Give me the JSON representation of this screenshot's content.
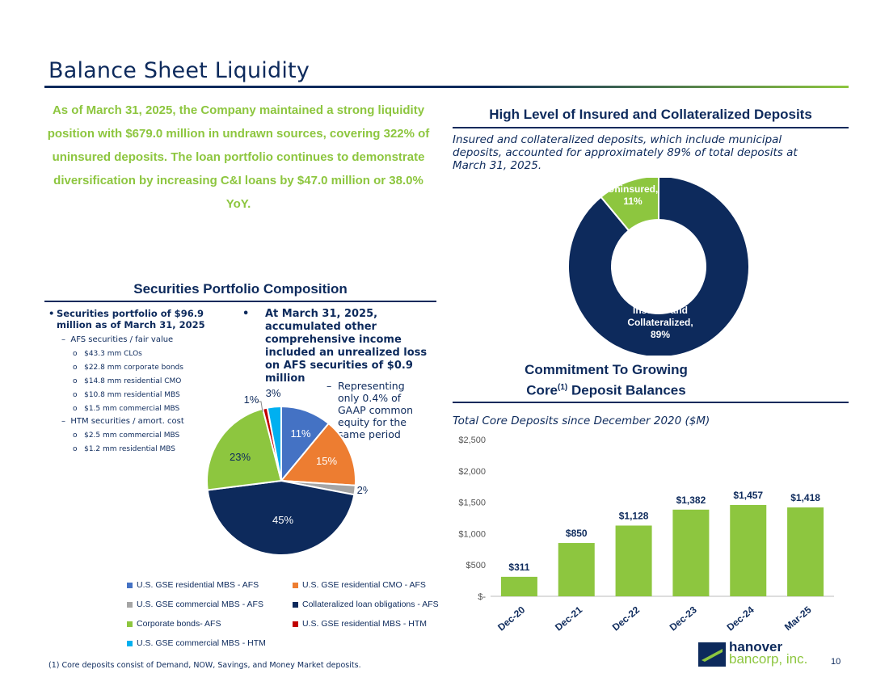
{
  "page": {
    "title": "Balance Sheet Liquidity",
    "page_number": "10"
  },
  "intro": "As of March 31, 2025, the Company maintained a strong liquidity position with $679.0 million in undrawn sources, covering 322% of uninsured deposits. The loan portfolio continues to demonstrate diversification by increasing C&I loans by $47.0 million or 38.0% YoY.",
  "portfolio": {
    "title": "Securities Portfolio Composition",
    "bullet1": "Securities portfolio of $96.9 million as of March 31, 2025",
    "afs_label": "AFS securities / fair value",
    "afs_items": [
      "$43.3 mm CLOs",
      "$22.8 mm corporate bonds",
      "$14.8 mm residential CMO",
      "$10.8 mm residential MBS",
      "$1.5 mm commercial MBS"
    ],
    "htm_label": "HTM securities / amort. cost",
    "htm_items": [
      "$2.5 mm commercial MBS",
      "$1.2 mm residential MBS"
    ],
    "bullet2": "At March 31, 2025, accumulated other comprehensive income included an unrealized loss on AFS securities of $0.9 million",
    "bullet2_sub": "Representing only 0.4% of GAAP common equity for the same period"
  },
  "deposits": {
    "title": "High Level of Insured and Collateralized Deposits",
    "description": "Insured and collateralized deposits, which include municipal deposits, accounted for approximately 89% of total deposits at March 31, 2025."
  },
  "core": {
    "title_line1": "Commitment To Growing",
    "title_line2a": "Core",
    "title_sup": "(1)",
    "title_line2b": " Deposit Balances",
    "subtitle": "Total Core Deposits since December 2020 ($M)"
  },
  "footnote": "(1) Core deposits consist of Demand, NOW, Savings, and Money Market deposits.",
  "logo": {
    "line1": "hanover",
    "line2": "bancorp, inc."
  },
  "colors": {
    "navy": "#0d2a5c",
    "green": "#8dc63f",
    "blue": "#4472c4",
    "orange": "#ed7d31",
    "gray": "#a5a5a5",
    "red": "#c00000",
    "cyan": "#00b0f0"
  },
  "chart_data": [
    {
      "type": "pie",
      "labels": [
        "U.S. GSE residential MBS - AFS",
        "U.S. GSE residential CMO - AFS",
        "U.S. GSE commercial MBS -  AFS",
        "Collateralized loan obligations - AFS",
        "Corporate bonds- AFS",
        "U.S. GSE residential MBS - HTM",
        "U.S. GSE commercial MBS - HTM"
      ],
      "values": [
        11,
        15,
        2,
        45,
        23,
        1,
        3
      ],
      "data_labels": [
        "11%",
        "15%",
        "2%",
        "45%",
        "23%",
        "1%",
        "3%"
      ],
      "colors": [
        "#4472c4",
        "#ed7d31",
        "#a5a5a5",
        "#0d2a5c",
        "#8dc63f",
        "#c00000",
        "#00b0f0"
      ],
      "legend": "bottom"
    },
    {
      "type": "pie",
      "variant": "donut",
      "labels": [
        "Insured and Collateralized",
        "Uninsured"
      ],
      "label_lines": [
        [
          "Insured and",
          "Collateralized,",
          "89%"
        ],
        [
          "Uninsured,",
          "11%"
        ]
      ],
      "values": [
        89,
        11
      ],
      "colors": [
        "#0d2a5c",
        "#8dc63f"
      ]
    },
    {
      "type": "bar",
      "categories": [
        "Dec-20",
        "Dec-21",
        "Dec-22",
        "Dec-23",
        "Dec-24",
        "Mar-25"
      ],
      "values": [
        311,
        850,
        1128,
        1382,
        1457,
        1418
      ],
      "data_labels": [
        "$311",
        "$850",
        "$1,128",
        "$1,382",
        "$1,457",
        "$1,418"
      ],
      "ylim": [
        0,
        2500
      ],
      "yticks": [
        0,
        500,
        1000,
        1500,
        2000,
        2500
      ],
      "ytick_labels": [
        "$-",
        "$500",
        "$1,000",
        "$1,500",
        "$2,000",
        "$2,500"
      ],
      "color": "#8dc63f",
      "grid": false
    }
  ]
}
